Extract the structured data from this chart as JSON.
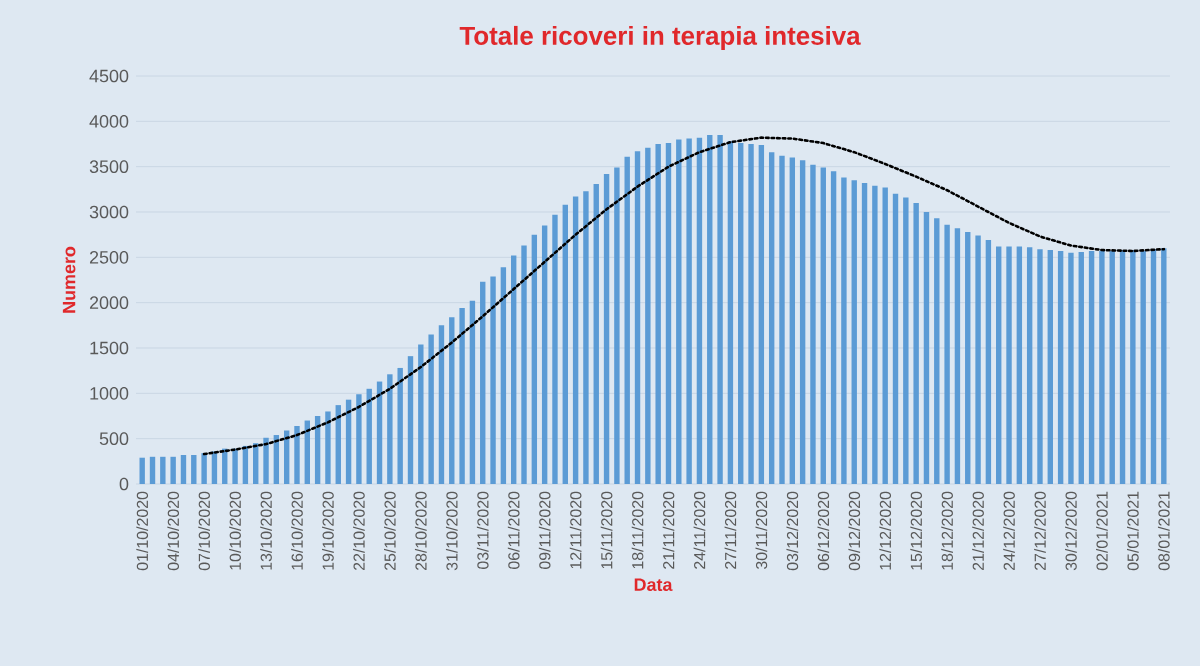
{
  "chart_data": {
    "type": "bar",
    "title": "Totale ricoveri in terapia intesiva",
    "xlabel": "Data",
    "ylabel": "Numero",
    "categories": [
      "01/10/2020",
      null,
      null,
      "04/10/2020",
      null,
      null,
      "07/10/2020",
      null,
      null,
      "10/10/2020",
      null,
      null,
      "13/10/2020",
      null,
      null,
      "16/10/2020",
      null,
      null,
      "19/10/2020",
      null,
      null,
      "22/10/2020",
      null,
      null,
      "25/10/2020",
      null,
      null,
      "28/10/2020",
      null,
      null,
      "31/10/2020",
      null,
      null,
      "03/11/2020",
      null,
      null,
      "06/11/2020",
      null,
      null,
      "09/11/2020",
      null,
      null,
      "12/11/2020",
      null,
      null,
      "15/11/2020",
      null,
      null,
      "18/11/2020",
      null,
      null,
      "21/11/2020",
      null,
      null,
      "24/11/2020",
      null,
      null,
      "27/11/2020",
      null,
      null,
      "30/11/2020",
      null,
      null,
      "03/12/2020",
      null,
      null,
      "06/12/2020",
      null,
      null,
      "09/12/2020",
      null,
      null,
      "12/12/2020",
      null,
      null,
      "15/12/2020",
      null,
      null,
      "18/12/2020",
      null,
      null,
      "21/12/2020",
      null,
      null,
      "24/12/2020",
      null,
      null,
      "27/12/2020",
      null,
      null,
      "30/12/2020",
      null,
      null,
      "02/01/2021",
      null,
      null,
      "05/01/2021",
      null,
      null,
      "08/01/2021"
    ],
    "series": [
      {
        "color": "#5b9bd5",
        "values": [
          290,
          300,
          300,
          300,
          320,
          320,
          340,
          360,
          390,
          390,
          420,
          450,
          510,
          540,
          590,
          640,
          700,
          750,
          800,
          870,
          930,
          990,
          1050,
          1130,
          1210,
          1280,
          1410,
          1540,
          1650,
          1750,
          1840,
          1940,
          2020,
          2230,
          2290,
          2390,
          2520,
          2630,
          2750,
          2850,
          2970,
          3080,
          3170,
          3230,
          3310,
          3420,
          3490,
          3610,
          3670,
          3710,
          3750,
          3760,
          3800,
          3810,
          3820,
          3850,
          3850,
          3780,
          3760,
          3750,
          3740,
          3660,
          3620,
          3600,
          3570,
          3520,
          3490,
          3450,
          3380,
          3350,
          3320,
          3290,
          3270,
          3200,
          3160,
          3100,
          3000,
          2930,
          2860,
          2820,
          2780,
          2740,
          2690,
          2620,
          2620,
          2620,
          2610,
          2590,
          2580,
          2570,
          2550,
          2560,
          2570,
          2570,
          2570,
          2580,
          2580,
          2570,
          2590,
          2600
        ]
      },
      {
        "type": "line",
        "line_style": "dotted",
        "color": "#000000",
        "x": [
          "07/10/2020",
          "10/10/2020",
          "13/10/2020",
          "16/10/2020",
          "19/10/2020",
          "22/10/2020",
          "25/10/2020",
          "28/10/2020",
          "31/10/2020",
          "03/11/2020",
          "06/11/2020",
          "09/11/2020",
          "12/11/2020",
          "15/11/2020",
          "18/11/2020",
          "21/11/2020",
          "24/11/2020",
          "27/11/2020",
          "30/11/2020",
          "03/12/2020",
          "06/12/2020",
          "09/12/2020",
          "12/12/2020",
          "15/12/2020",
          "18/12/2020",
          "21/12/2020",
          "24/12/2020",
          "27/12/2020",
          "30/12/2020",
          "02/01/2021",
          "05/01/2021",
          "08/01/2021"
        ],
        "values": [
          330,
          380,
          440,
          540,
          680,
          850,
          1050,
          1290,
          1560,
          1850,
          2150,
          2450,
          2750,
          3030,
          3280,
          3500,
          3660,
          3770,
          3820,
          3810,
          3760,
          3660,
          3530,
          3390,
          3240,
          3060,
          2880,
          2730,
          2630,
          2580,
          2570,
          2590
        ]
      }
    ],
    "ylim": [
      0,
      4500
    ],
    "yticks": [
      0,
      500,
      1000,
      1500,
      2000,
      2500,
      3000,
      3500,
      4000,
      4500
    ],
    "grid": "y"
  }
}
